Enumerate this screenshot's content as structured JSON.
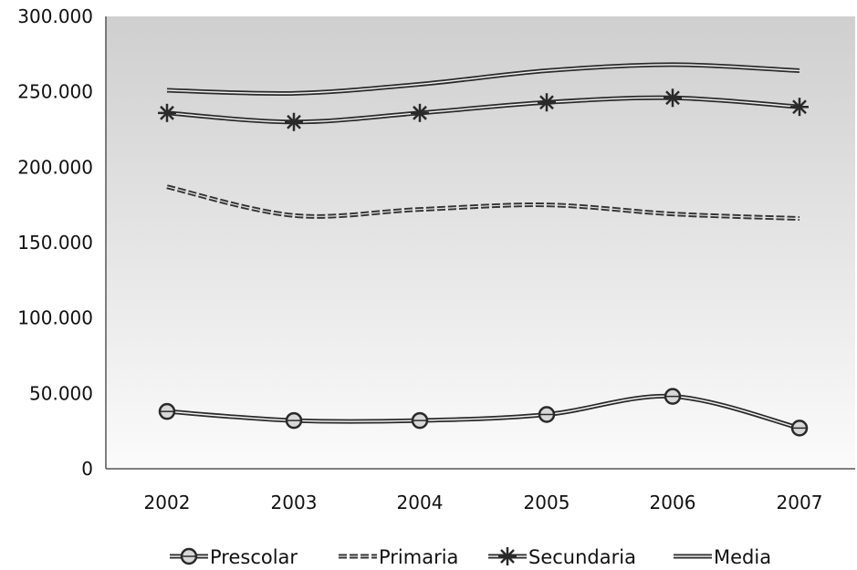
{
  "chart_data": {
    "type": "line",
    "title": "",
    "xlabel": "",
    "ylabel": "",
    "categories": [
      "2002",
      "2003",
      "2004",
      "2005",
      "2006",
      "2007"
    ],
    "ylim": [
      0,
      300000
    ],
    "y_ticks": [
      0,
      50000,
      100000,
      150000,
      200000,
      250000,
      300000
    ],
    "y_tick_labels": [
      "0",
      "50.000",
      "100.000",
      "150.000",
      "200.000",
      "250.000",
      "300.000"
    ],
    "grid": false,
    "legend_position": "bottom",
    "series": [
      {
        "name": "Prescolar",
        "values": [
          38000,
          32000,
          32000,
          36000,
          48000,
          27000
        ],
        "marker": "circle",
        "line": "double"
      },
      {
        "name": "Primaria",
        "values": [
          187000,
          168000,
          172000,
          175000,
          169000,
          166000
        ],
        "marker": "none",
        "line": "dashed-double"
      },
      {
        "name": "Secundaria",
        "values": [
          236000,
          230000,
          236000,
          243000,
          246000,
          240000
        ],
        "marker": "asterisk",
        "line": "double"
      },
      {
        "name": "Media",
        "values": [
          251000,
          249000,
          255000,
          264000,
          268000,
          264000
        ],
        "marker": "none",
        "line": "double"
      }
    ]
  }
}
